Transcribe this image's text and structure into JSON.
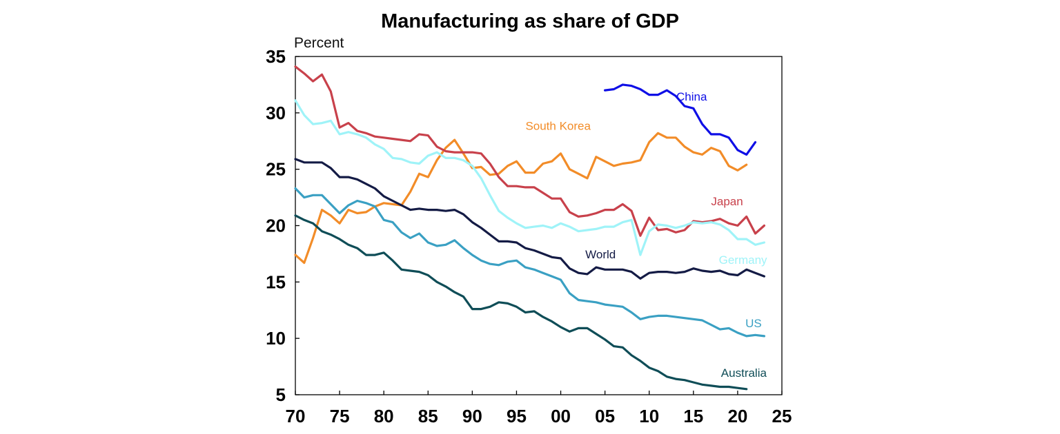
{
  "chart_data": {
    "type": "line",
    "title": "Manufacturing as share of GDP",
    "ylabel": "Percent",
    "xlabel": "",
    "xlim": [
      1970,
      2025
    ],
    "ylim": [
      5,
      35
    ],
    "x_ticks": [
      {
        "value": 1970,
        "label": "70"
      },
      {
        "value": 1975,
        "label": "75"
      },
      {
        "value": 1980,
        "label": "80"
      },
      {
        "value": 1985,
        "label": "85"
      },
      {
        "value": 1990,
        "label": "90"
      },
      {
        "value": 1995,
        "label": "95"
      },
      {
        "value": 2000,
        "label": "00"
      },
      {
        "value": 2005,
        "label": "05"
      },
      {
        "value": 2010,
        "label": "10"
      },
      {
        "value": 2015,
        "label": "15"
      },
      {
        "value": 2020,
        "label": "20"
      },
      {
        "value": 2025,
        "label": "25"
      }
    ],
    "y_ticks": [
      {
        "value": 5,
        "label": "5"
      },
      {
        "value": 10,
        "label": "10"
      },
      {
        "value": 15,
        "label": "15"
      },
      {
        "value": 20,
        "label": "20"
      },
      {
        "value": 25,
        "label": "25"
      },
      {
        "value": 30,
        "label": "30"
      },
      {
        "value": 35,
        "label": "35"
      }
    ],
    "grid": false,
    "legend": "inline labels",
    "series": [
      {
        "name": "China",
        "color": "#0f0fe6",
        "label_at": [
          2014.8,
          31.1
        ],
        "x_start": 2005,
        "values": [
          32.0,
          32.1,
          32.5,
          32.4,
          32.1,
          31.6,
          31.6,
          32.0,
          31.5,
          30.6,
          30.4,
          29.0,
          28.1,
          28.1,
          27.8,
          26.7,
          26.3,
          27.4
        ]
      },
      {
        "name": "South Korea",
        "color": "#f28c28",
        "label_at": [
          1999.7,
          28.5
        ],
        "x_start": 1970,
        "values": [
          17.4,
          16.7,
          18.9,
          21.4,
          20.9,
          20.2,
          21.4,
          21.1,
          21.2,
          21.7,
          22.0,
          21.9,
          21.8,
          23.0,
          24.6,
          24.3,
          25.8,
          26.9,
          27.6,
          26.4,
          25.1,
          25.2,
          24.5,
          24.6,
          25.3,
          25.7,
          24.7,
          24.7,
          25.5,
          25.7,
          26.4,
          25.0,
          24.6,
          24.2,
          26.1,
          25.7,
          25.3,
          25.5,
          25.6,
          25.8,
          27.4,
          28.2,
          27.8,
          27.8,
          27.0,
          26.5,
          26.3,
          26.9,
          26.6,
          25.3,
          24.9,
          25.4
        ]
      },
      {
        "name": "Japan",
        "color": "#c8414b",
        "label_at": [
          2018.8,
          21.8
        ],
        "x_start": 1970,
        "values": [
          34.1,
          33.5,
          32.8,
          33.4,
          31.9,
          28.7,
          29.1,
          28.4,
          28.2,
          27.9,
          27.8,
          27.7,
          27.6,
          27.5,
          28.1,
          28.0,
          27.0,
          26.6,
          26.5,
          26.5,
          26.5,
          26.4,
          25.5,
          24.3,
          23.5,
          23.5,
          23.4,
          23.4,
          22.9,
          22.4,
          22.4,
          21.2,
          20.8,
          20.9,
          21.1,
          21.4,
          21.4,
          21.9,
          21.3,
          19.1,
          20.7,
          19.6,
          19.7,
          19.4,
          19.6,
          20.4,
          20.3,
          20.4,
          20.6,
          20.2,
          20.0,
          20.8,
          19.3,
          20.0
        ]
      },
      {
        "name": "Germany",
        "color": "#9ff3f8",
        "label_at": [
          2020.6,
          16.6
        ],
        "x_start": 1970,
        "values": [
          31.1,
          29.8,
          29.0,
          29.1,
          29.3,
          28.1,
          28.3,
          28.1,
          27.8,
          27.2,
          26.8,
          26.0,
          25.9,
          25.6,
          25.5,
          26.2,
          26.5,
          26.0,
          26.0,
          25.8,
          25.3,
          24.2,
          22.7,
          21.3,
          20.7,
          20.2,
          19.8,
          19.9,
          20.0,
          19.8,
          20.2,
          19.9,
          19.5,
          19.6,
          19.7,
          19.9,
          19.9,
          20.3,
          20.5,
          17.4,
          19.5,
          20.1,
          20.0,
          19.8,
          20.0,
          20.3,
          20.2,
          20.3,
          20.1,
          19.6,
          18.8,
          18.8,
          18.3,
          18.5
        ]
      },
      {
        "name": "World",
        "color": "#141b45",
        "label_at": [
          2004.5,
          17.1
        ],
        "x_start": 1970,
        "values": [
          25.9,
          25.6,
          25.6,
          25.6,
          25.1,
          24.3,
          24.3,
          24.1,
          23.7,
          23.3,
          22.6,
          22.2,
          21.8,
          21.4,
          21.5,
          21.4,
          21.4,
          21.3,
          21.4,
          21.0,
          20.3,
          19.8,
          19.2,
          18.6,
          18.6,
          18.5,
          18.0,
          17.8,
          17.5,
          17.2,
          17.1,
          16.2,
          15.8,
          15.7,
          16.3,
          16.1,
          16.1,
          16.1,
          15.9,
          15.3,
          15.8,
          15.9,
          15.9,
          15.8,
          15.9,
          16.2,
          16.0,
          15.9,
          16.0,
          15.7,
          15.6,
          16.1,
          15.8,
          15.5
        ]
      },
      {
        "name": "US",
        "color": "#3aa0c3",
        "label_at": [
          2021.8,
          11.0
        ],
        "x_start": 1970,
        "values": [
          23.3,
          22.5,
          22.7,
          22.7,
          21.9,
          21.1,
          21.8,
          22.2,
          22.0,
          21.7,
          20.5,
          20.3,
          19.4,
          18.9,
          19.3,
          18.5,
          18.2,
          18.3,
          18.7,
          18.0,
          17.4,
          16.9,
          16.6,
          16.5,
          16.8,
          16.9,
          16.3,
          16.1,
          15.8,
          15.5,
          15.2,
          14.0,
          13.4,
          13.3,
          13.2,
          13.0,
          12.9,
          12.8,
          12.3,
          11.7,
          11.9,
          12.0,
          12.0,
          11.9,
          11.8,
          11.7,
          11.6,
          11.2,
          10.8,
          10.9,
          10.5,
          10.2,
          10.3,
          10.2
        ]
      },
      {
        "name": "Australia",
        "color": "#0f4d57",
        "label_at": [
          2020.7,
          6.6
        ],
        "x_start": 1970,
        "values": [
          20.9,
          20.5,
          20.2,
          19.5,
          19.2,
          18.8,
          18.3,
          18.0,
          17.4,
          17.4,
          17.6,
          16.9,
          16.1,
          16.0,
          15.9,
          15.6,
          15.0,
          14.6,
          14.1,
          13.7,
          12.6,
          12.6,
          12.8,
          13.2,
          13.1,
          12.8,
          12.3,
          12.4,
          11.9,
          11.5,
          11.0,
          10.6,
          10.9,
          10.9,
          10.4,
          9.9,
          9.3,
          9.2,
          8.5,
          8.0,
          7.4,
          7.1,
          6.6,
          6.4,
          6.3,
          6.1,
          5.9,
          5.8,
          5.7,
          5.7,
          5.6,
          5.5
        ]
      }
    ]
  }
}
